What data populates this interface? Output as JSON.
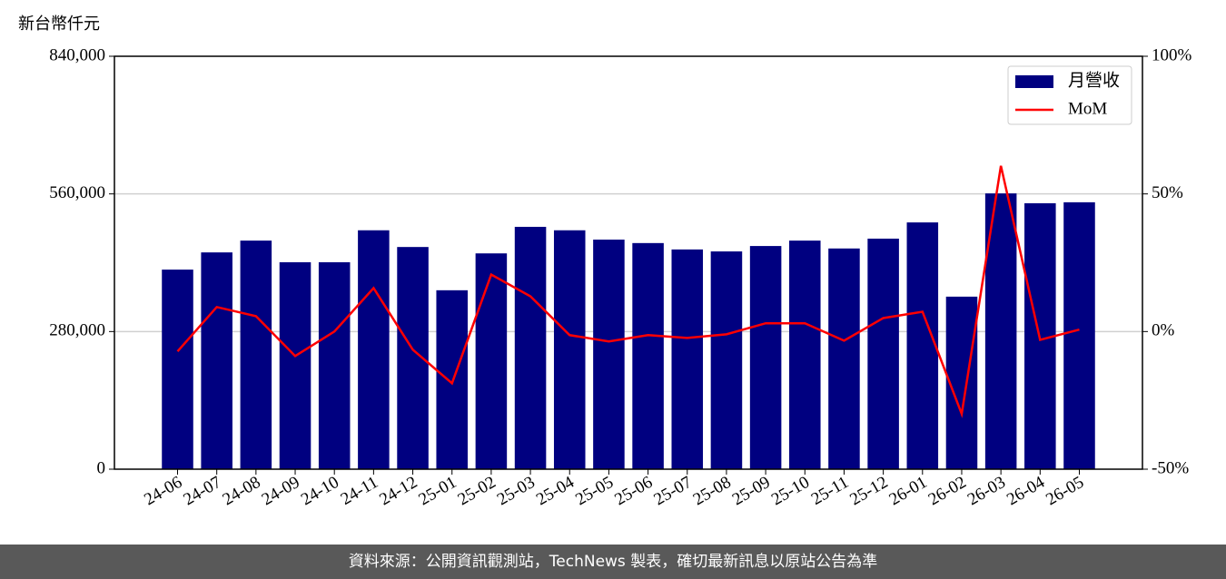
{
  "chart_data": {
    "type": "bar",
    "y_label": "新台幣仟元",
    "footer": "資料來源：公開資訊觀測站，TechNews 製表，確切最新訊息以原站公告為準",
    "categories": [
      "24-06",
      "24-07",
      "24-08",
      "24-09",
      "24-10",
      "24-11",
      "24-12",
      "25-01",
      "25-02",
      "25-03",
      "25-04",
      "25-05",
      "25-06",
      "25-07",
      "25-08",
      "25-09",
      "25-10",
      "25-11",
      "25-12",
      "26-01",
      "26-02",
      "26-03",
      "26-04",
      "26-05"
    ],
    "series": [
      {
        "name": "月營收",
        "type": "bar",
        "color": "#000080",
        "values": [
          406000,
          441000,
          465000,
          421000,
          421000,
          486000,
          452000,
          364000,
          439000,
          493000,
          486000,
          467000,
          460000,
          447000,
          443000,
          454000,
          465000,
          449000,
          469000,
          502000,
          351000,
          561000,
          541000,
          543000
        ]
      },
      {
        "name": "MoM",
        "type": "line",
        "axis": "y2",
        "color": "#ff0000",
        "values": [
          -7.2,
          8.9,
          5.6,
          -8.9,
          0,
          15.8,
          -6.6,
          -18.8,
          20.7,
          12.8,
          -1.3,
          -3.6,
          -1.3,
          -2.3,
          -1.0,
          3.0,
          3.0,
          -3.3,
          4.9,
          7.2,
          -29.9,
          60.2,
          -3.0,
          0.7
        ]
      }
    ],
    "ylim": [
      0,
      840000
    ],
    "yticks": [
      0,
      {
        "value": 280000,
        "label": "280,000"
      },
      {
        "value": 560000,
        "label": "560,000"
      },
      {
        "value": 840000,
        "label": "840,000"
      }
    ],
    "y2lim": [
      -50,
      100
    ],
    "y2ticks": [
      {
        "value": -50,
        "label": "-50%"
      },
      {
        "value": 0,
        "label": "0%"
      },
      {
        "value": 50,
        "label": "50%"
      },
      {
        "value": 100,
        "label": "100%"
      }
    ],
    "grid": true,
    "legend": "upper right"
  }
}
